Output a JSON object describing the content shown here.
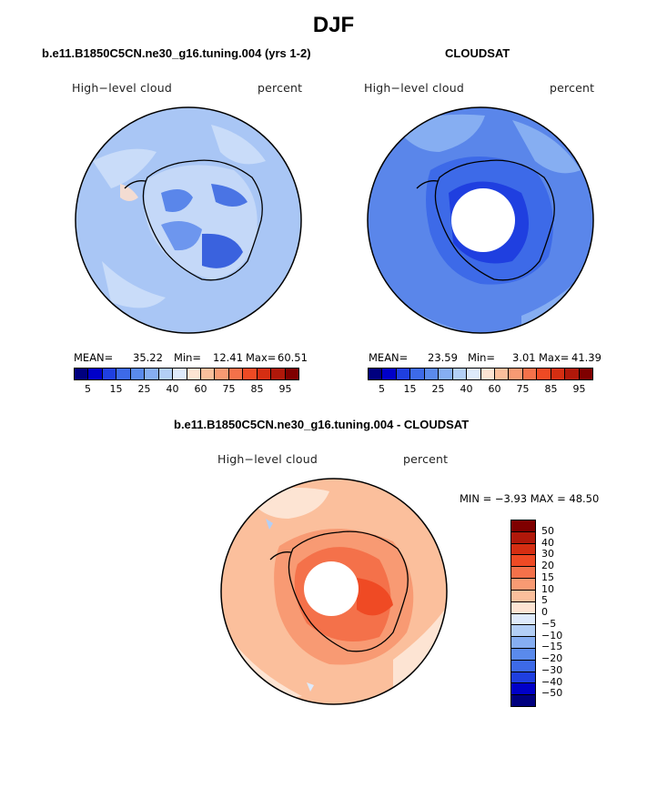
{
  "figure": {
    "title": "DJF",
    "panels": [
      {
        "subtitle": "b.e11.B1850C5CN.ne30_g16.tuning.004 (yrs 1-2)",
        "left_label": "High−level cloud",
        "right_label": "percent",
        "stats": {
          "mean_label": "MEAN=",
          "mean": "35.22",
          "min_label": "Min=",
          "min": "12.41",
          "max_label": "Max=",
          "max": "60.51"
        }
      },
      {
        "subtitle": "CLOUDSAT",
        "left_label": "High−level cloud",
        "right_label": "percent",
        "stats": {
          "mean_label": "MEAN=",
          "mean": "23.59",
          "min_label": "Min=",
          "min": "3.01",
          "max_label": "Max=",
          "max": "41.39"
        }
      },
      {
        "subtitle": "b.e11.B1850C5CN.ne30_g16.tuning.004 - CLOUDSAT",
        "left_label": "High−level cloud",
        "right_label": "percent",
        "stats_line": "MIN =  −3.93 MAX =  48.50"
      }
    ],
    "abs_colorbar": {
      "tick_labels": [
        "5",
        "15",
        "25",
        "40",
        "60",
        "75",
        "85",
        "95"
      ],
      "colors": [
        "#00007f",
        "#0000c8",
        "#1f3fe0",
        "#3d6ae8",
        "#5a8aec",
        "#86aef2",
        "#b3cff6",
        "#deeafb",
        "#fde4d3",
        "#fbbf9c",
        "#f89a73",
        "#f4714a",
        "#ef4a24",
        "#d52e12",
        "#b0180a",
        "#7f0000"
      ]
    },
    "diff_colorbar": {
      "tick_labels": [
        "50",
        "40",
        "30",
        "20",
        "15",
        "10",
        "5",
        "0",
        "−5",
        "−10",
        "−15",
        "−20",
        "−30",
        "−40",
        "−50"
      ],
      "colors": [
        "#7f0000",
        "#b0180a",
        "#d52e12",
        "#ef4a24",
        "#f4714a",
        "#f89a73",
        "#fbbf9c",
        "#fde4d3",
        "#deeafb",
        "#b3cff6",
        "#86aef2",
        "#5a8aec",
        "#3d6ae8",
        "#1f3fe0",
        "#0000c8",
        "#00007f"
      ]
    }
  }
}
